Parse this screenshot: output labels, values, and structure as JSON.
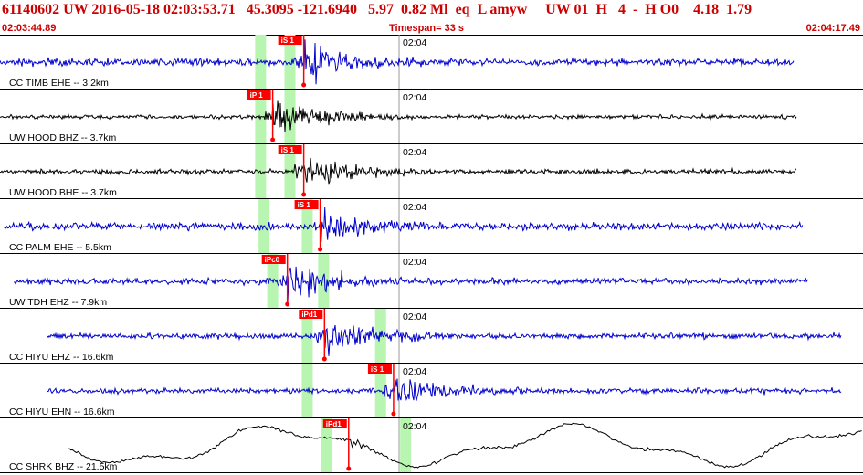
{
  "header": {
    "event_line": "61140602 UW 2016-05-18 02:03:53.71   45.3095 -121.6940   5.97  0.82 Ml  eq  L amyw     UW 01  H   4  -  H O0    4.18  1.79",
    "start_time": "02:03:44.89",
    "timespan": "Timespan=  33 s",
    "end_time": "02:04:17.49"
  },
  "colors": {
    "header_text": "#cc0000",
    "trace_blue": "#0000cc",
    "trace_black": "#000000",
    "pick_red": "#ff0000",
    "window_green": "#b8f5b0",
    "grid_line": "#999999"
  },
  "time_tick_label": "02:04",
  "channels": [
    {
      "label": "CC TIMB EHE -- 3.2km",
      "color": "blue",
      "amplitude": 0.55,
      "noise_start": 0.0,
      "noise_end": 0.92,
      "green": [
        0.302,
        0.336
      ],
      "pick": {
        "label": "iS 1",
        "t": 0.352
      }
    },
    {
      "label": "UW HOOD BHZ -- 3.7km",
      "color": "black",
      "amplitude": 0.35,
      "noise_start": 0.0,
      "noise_end": 0.923,
      "green": [
        0.302,
        0.336
      ],
      "pick": {
        "label": "iP 1",
        "t": 0.316
      }
    },
    {
      "label": "UW HOOD BHE -- 3.7km",
      "color": "black",
      "amplitude": 0.4,
      "noise_start": 0.0,
      "noise_end": 0.923,
      "green": [
        0.302,
        0.336
      ],
      "pick": {
        "label": "iS 1",
        "t": 0.352
      }
    },
    {
      "label": "CC PALM EHE -- 5.5km",
      "color": "blue",
      "amplitude": 0.6,
      "noise_start": 0.005,
      "noise_end": 0.93,
      "green": [
        0.306,
        0.356
      ],
      "pick": {
        "label": "iS 1",
        "t": 0.371
      }
    },
    {
      "label": "UW TDH EHZ -- 7.9km",
      "color": "blue",
      "amplitude": 0.5,
      "noise_start": 0.016,
      "noise_end": 0.937,
      "green": [
        0.316,
        0.375
      ],
      "pick": {
        "label": "iPc0",
        "t": 0.333
      }
    },
    {
      "label": "CC HIYU EHZ -- 16.6km",
      "color": "blue",
      "amplitude": 0.45,
      "noise_start": 0.055,
      "noise_end": 0.975,
      "green": [
        0.356,
        0.441
      ],
      "pick": {
        "label": "iPd1",
        "t": 0.376
      }
    },
    {
      "label": "CC HIYU EHN -- 16.6km",
      "color": "blue",
      "amplitude": 0.45,
      "noise_start": 0.055,
      "noise_end": 0.975,
      "green": [
        0.356,
        0.441
      ],
      "pick": {
        "label": "iS 1",
        "t": 0.456
      }
    },
    {
      "label": "CC SHRK BHZ -- 21.5km",
      "color": "black",
      "amplitude": 0.7,
      "noise_start": 0.08,
      "noise_end": 1.0,
      "green": [
        0.378,
        0.47
      ],
      "pick": {
        "label": "iPd1",
        "t": 0.404
      }
    }
  ]
}
